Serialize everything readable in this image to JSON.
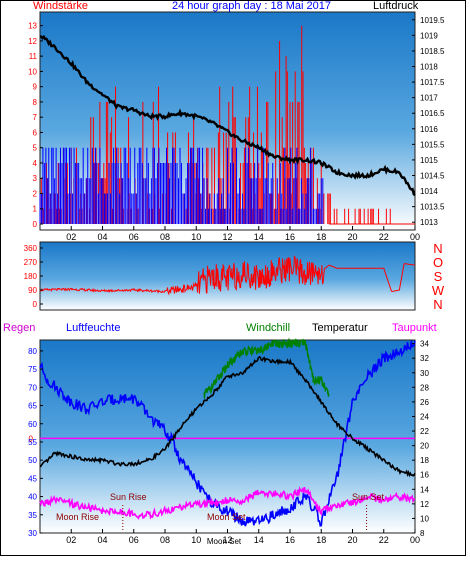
{
  "header": {
    "left": "Windstärke",
    "center": "24 hour graph day : 18 Mai 2017",
    "right": "Luftdruck"
  },
  "mid_panel": {
    "compass_letters": [
      "N",
      "W",
      "S",
      "O",
      "N"
    ]
  },
  "lower_header": {
    "rain": "Regen",
    "humidity": "Luftfeuchte",
    "windchill": "Windchill",
    "temperature": "Temperatur",
    "dewpoint": "Taupunkt"
  },
  "events": {
    "moon_rise": "Moon Rise",
    "sun_rise": "Sun Rise",
    "moon_set": "Moon Set",
    "sun_set": "Sun Set",
    "moon_set_axis_overlap": "Moon Set"
  },
  "colors": {
    "gust": "#ff0000",
    "average_wind": "#0000ff",
    "pressure": "#000000",
    "direction": "#ff0000",
    "humidity": "#0000ff",
    "windchill": "#008000",
    "temperature": "#000000",
    "dewpoint": "#ff00ff",
    "rain_zero_line": "#ff00ff",
    "events": "#8b0000"
  },
  "chart_data": [
    {
      "type": "line",
      "title": "24 hour graph day : 18 Mai 2017",
      "xlabel": "",
      "x_ticks": [
        "02",
        "04",
        "06",
        "08",
        "10",
        "12",
        "14",
        "16",
        "18",
        "20",
        "22",
        "00"
      ],
      "y_left_label": "Windstärke",
      "y_left_ticks": [
        0,
        1,
        2,
        3,
        4,
        5,
        6,
        7,
        8,
        9,
        10,
        11,
        12,
        13
      ],
      "y_left_range": [
        0,
        13.5
      ],
      "y_right_label": "Luftdruck",
      "y_right_ticks": [
        1013,
        1013.5,
        1014,
        1014.5,
        1015,
        1015.5,
        1016,
        1016.5,
        1017,
        1017.5,
        1018,
        1018.5,
        1019,
        1019.5
      ],
      "y_right_range": [
        1012.75,
        1019.75
      ],
      "series": [
        {
          "name": "Luftdruck",
          "axis": "right",
          "x": [
            0,
            1,
            2,
            3,
            4,
            5,
            6,
            7,
            8,
            9,
            10,
            11,
            12,
            13,
            14,
            15,
            16,
            17,
            18,
            19,
            20,
            21,
            22,
            23,
            24
          ],
          "values": [
            1019,
            1018.6,
            1018.1,
            1017.5,
            1017.1,
            1016.7,
            1016.6,
            1016.4,
            1016.4,
            1016.5,
            1016.4,
            1016.2,
            1015.9,
            1015.6,
            1015.4,
            1015.1,
            1015.0,
            1015.0,
            1014.9,
            1014.6,
            1014.5,
            1014.5,
            1014.7,
            1014.6,
            1013.9
          ]
        }
      ],
      "gust_segments": [
        {
          "x": [
            0,
            3.0
          ],
          "range": [
            0,
            5.5
          ]
        },
        {
          "x": [
            3.0,
            8.0
          ],
          "range": [
            0,
            9.0
          ]
        },
        {
          "x": [
            8.0,
            10.0
          ],
          "range": [
            0,
            7.0
          ]
        },
        {
          "x": [
            10.0,
            11.0
          ],
          "range": [
            0,
            5.5
          ]
        },
        {
          "x": [
            11.0,
            15.0
          ],
          "range": [
            0,
            9.5
          ]
        },
        {
          "x": [
            15.0,
            17.0
          ],
          "range": [
            0,
            13.5
          ]
        },
        {
          "x": [
            17.0,
            18.5
          ],
          "range": [
            0,
            5.5
          ]
        },
        {
          "x": [
            18.5,
            19.0
          ],
          "range": [
            0,
            2.0
          ]
        },
        {
          "x": [
            19.0,
            22.5
          ],
          "range": [
            0,
            1.0
          ]
        },
        {
          "x": [
            22.5,
            24.0
          ],
          "range": [
            0,
            0.0
          ]
        }
      ],
      "average_segments": [
        {
          "x": [
            0,
            1.5
          ],
          "range": [
            2,
            5.5
          ]
        },
        {
          "x": [
            1.5,
            5.0
          ],
          "range": [
            2,
            5.5
          ]
        },
        {
          "x": [
            5.0,
            8.0
          ],
          "range": [
            2,
            5.5
          ]
        },
        {
          "x": [
            8.0,
            10.5
          ],
          "range": [
            2,
            5.5
          ]
        },
        {
          "x": [
            10.5,
            12.0
          ],
          "range": [
            0,
            3.5
          ]
        },
        {
          "x": [
            12.0,
            17.5
          ],
          "range": [
            0,
            5.5
          ]
        },
        {
          "x": [
            17.5,
            18.2
          ],
          "range": [
            0,
            3.5
          ]
        }
      ]
    },
    {
      "type": "line",
      "title": "",
      "y_left_ticks": [
        0,
        90,
        180,
        270,
        360
      ],
      "y_left_range": [
        0,
        360
      ],
      "y_right_ticks": [
        "N",
        "W",
        "S",
        "O",
        "N"
      ],
      "x_range": [
        0,
        24
      ],
      "series": [
        {
          "name": "Wind direction",
          "x": [
            0,
            2,
            4,
            6,
            8,
            9,
            10,
            11,
            12,
            13,
            14,
            15,
            16,
            17,
            18,
            18.5,
            19,
            20,
            21,
            22,
            22.5,
            23,
            23.3,
            24
          ],
          "values": [
            90,
            95,
            85,
            90,
            80,
            95,
            110,
            180,
            160,
            200,
            170,
            210,
            230,
            190,
            210,
            250,
            230,
            230,
            230,
            230,
            80,
            90,
            260,
            250
          ]
        }
      ]
    },
    {
      "type": "line",
      "title": "",
      "x_ticks": [
        "02",
        "04",
        "06",
        "08",
        "10",
        "12",
        "14",
        "16",
        "18",
        "20",
        "22",
        "00"
      ],
      "y_left_label": "Luftfeuchte",
      "y_left_ticks": [
        30,
        35,
        40,
        45,
        50,
        55,
        60,
        65,
        70,
        75,
        80
      ],
      "y_left_range": [
        30,
        83
      ],
      "y_right_label": "Temperatur",
      "y_right_ticks": [
        8,
        10,
        12,
        14,
        16,
        18,
        20,
        22,
        24,
        26,
        28,
        30,
        32,
        34
      ],
      "y_right_range": [
        8,
        34.5
      ],
      "rain_zero_label": "0",
      "series": [
        {
          "name": "Luftfeuchte",
          "axis": "left",
          "x": [
            0,
            0.5,
            1,
            2,
            3,
            4,
            5,
            6,
            7,
            8,
            8.5,
            9,
            10,
            11,
            12,
            13,
            14,
            15,
            16,
            17,
            18,
            19,
            20,
            21,
            22,
            23,
            24
          ],
          "values": [
            76,
            72,
            70,
            66,
            64,
            66,
            67,
            67,
            62,
            58,
            55,
            50,
            44,
            38,
            36,
            33,
            33,
            35,
            37,
            40,
            33,
            45,
            66,
            73,
            78,
            80,
            82
          ]
        },
        {
          "name": "Temperatur",
          "axis": "right",
          "x": [
            0,
            1,
            2,
            3,
            4,
            5,
            6,
            7,
            8,
            9,
            10,
            11,
            12,
            13,
            14,
            15,
            16,
            17,
            18,
            19,
            20,
            21,
            22,
            23,
            24
          ],
          "values": [
            17,
            19,
            18.5,
            18,
            18,
            17.5,
            17.5,
            18,
            19.5,
            22.5,
            25,
            27,
            29.5,
            30,
            32,
            31.5,
            31.5,
            29,
            26,
            23,
            21,
            19.5,
            18,
            16.5,
            16
          ]
        },
        {
          "name": "Windchill",
          "axis": "right",
          "x": [
            10.5,
            11,
            12,
            13,
            14,
            15,
            16,
            17,
            17.5,
            18,
            18.5
          ],
          "values": [
            27,
            28,
            31,
            33,
            33,
            34,
            34,
            34,
            29,
            29,
            27
          ]
        },
        {
          "name": "Taupunkt",
          "axis": "right",
          "x": [
            0,
            1,
            2,
            3,
            4,
            5,
            6,
            7,
            8,
            9,
            10,
            11,
            12,
            13,
            14,
            15,
            16,
            17,
            18,
            19,
            20,
            21,
            22,
            23,
            24
          ],
          "values": [
            12,
            12.5,
            12,
            11.5,
            11,
            11,
            10.5,
            10.5,
            11,
            11.5,
            12,
            12,
            12.5,
            12.5,
            13.5,
            13.5,
            13,
            14,
            11,
            12,
            12,
            13,
            12.5,
            13,
            12.5
          ]
        }
      ]
    }
  ]
}
